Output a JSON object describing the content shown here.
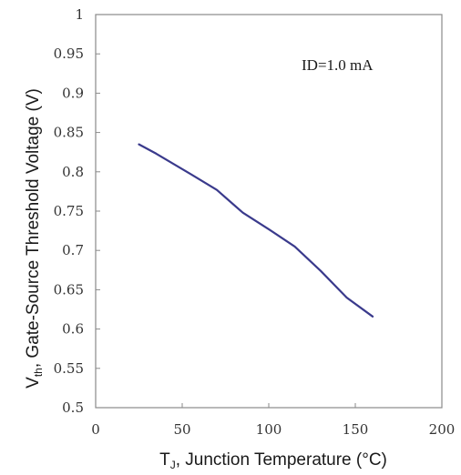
{
  "chart_data": {
    "type": "line",
    "title": "",
    "xlabel_main": "T",
    "xlabel_sub": "J",
    "xlabel_rest": ", Junction Temperature (°C)",
    "ylabel_main": "V",
    "ylabel_sub": "th",
    "ylabel_rest": ", Gate-Source Threshold Voltage (V)",
    "annotation": "ID=1.0 mA",
    "xlim": [
      0,
      200
    ],
    "ylim": [
      0.5,
      1.0
    ],
    "x_ticks": [
      "0",
      "50",
      "100",
      "150",
      "200"
    ],
    "y_ticks": [
      "0.5",
      "0.55",
      "0.6",
      "0.65",
      "0.7",
      "0.75",
      "0.8",
      "0.85",
      "0.9",
      "0.95",
      "1"
    ],
    "grid": false,
    "line_color": "#3a3a8c",
    "series": [
      {
        "x": [
          25,
          35,
          45,
          55,
          70,
          85,
          100,
          115,
          130,
          145,
          160
        ],
        "y": [
          0.835,
          0.823,
          0.81,
          0.797,
          0.777,
          0.748,
          0.727,
          0.705,
          0.674,
          0.64,
          0.616
        ]
      }
    ]
  }
}
